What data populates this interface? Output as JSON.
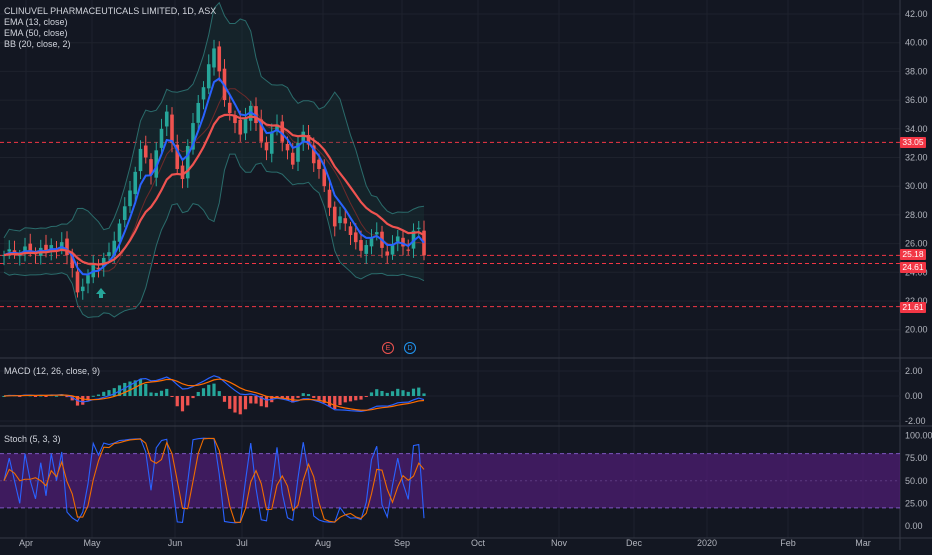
{
  "legend": {
    "symbol": "CLINUVEL PHARMACEUTICALS LIMITED, 1D, ASX",
    "ema13": "EMA (13, close)",
    "ema50": "EMA (50, close)",
    "bb": "BB (20, close, 2)"
  },
  "panes": {
    "macd_title": "MACD (12, 26, close, 9)",
    "stoch_title": "Stoch (5, 3, 3)"
  },
  "price_axis": [
    "42.00",
    "40.00",
    "38.00",
    "36.00",
    "34.00",
    "32.00",
    "30.00",
    "28.00",
    "26.00",
    "24.00",
    "22.00",
    "20.00"
  ],
  "price_tags": [
    {
      "label": "33.05",
      "color": "#f23645"
    },
    {
      "label": "25.18",
      "color": "#f23645"
    },
    {
      "label": "24.61",
      "color": "#f23645"
    },
    {
      "label": "21.61",
      "color": "#f23645"
    }
  ],
  "macd_axis": [
    "2.00",
    "0.00",
    "-2.00"
  ],
  "stoch_axis": [
    "100.00",
    "75.00",
    "50.00",
    "25.00",
    "0.00"
  ],
  "time_axis": [
    "Apr",
    "May",
    "Jun",
    "Jul",
    "Aug",
    "Sep",
    "Oct",
    "Nov",
    "Dec",
    "2020",
    "Feb",
    "Mar"
  ],
  "events": {
    "earnings": "E",
    "dividend": "D"
  },
  "colors": {
    "up": "#26a69a",
    "down": "#ef5350",
    "ema13": "#2962ff",
    "ema50": "#ef5350",
    "bb": "#2a6b6b",
    "stoch_k": "#2962ff",
    "stoch_d": "#ef6c00",
    "stoch_band": "#4a1d6e"
  },
  "chart_data": {
    "type": "candlestick",
    "symbol": "CLINUVEL PHARMACEUTICALS LIMITED",
    "interval": "1D",
    "exchange": "ASX",
    "ylim": [
      19,
      42.5
    ],
    "horizontal_levels": [
      33.05,
      25.18,
      24.61,
      21.61
    ],
    "close_path": [
      25.2,
      25.6,
      25.4,
      25.2,
      25.8,
      25.5,
      25.3,
      25.7,
      25.4,
      25.9,
      25.6,
      26.1,
      25.2,
      24.3,
      22.6,
      23.0,
      23.8,
      24.5,
      24.2,
      25.0,
      25.4,
      26.2,
      27.4,
      28.6,
      29.7,
      31.0,
      32.6,
      32.0,
      30.8,
      32.5,
      34.0,
      35.2,
      33.0,
      31.2,
      30.5,
      32.8,
      34.4,
      35.8,
      36.9,
      38.5,
      39.6,
      38.0,
      36.0,
      35.1,
      34.4,
      33.6,
      34.8,
      35.6,
      34.4,
      33.1,
      32.5,
      33.8,
      34.3,
      33.1,
      32.5,
      31.5,
      33.0,
      33.8,
      32.9,
      31.6,
      31.2,
      30.0,
      28.5,
      27.2,
      27.9,
      27.4,
      26.6,
      26.1,
      25.5,
      25.9,
      26.4,
      26.8,
      25.7,
      25.2,
      25.9,
      26.5,
      25.8,
      25.5,
      26.9,
      27.1,
      25.18
    ]
  }
}
